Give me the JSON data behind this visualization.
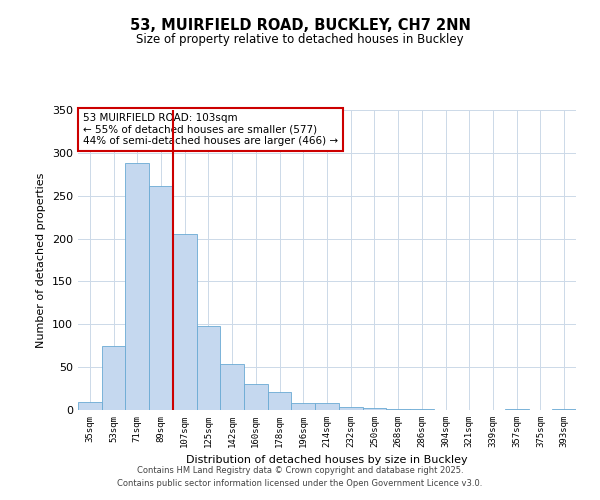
{
  "title": "53, MUIRFIELD ROAD, BUCKLEY, CH7 2NN",
  "subtitle": "Size of property relative to detached houses in Buckley",
  "xlabel": "Distribution of detached houses by size in Buckley",
  "ylabel": "Number of detached properties",
  "bar_labels": [
    "35sqm",
    "53sqm",
    "71sqm",
    "89sqm",
    "107sqm",
    "125sqm",
    "142sqm",
    "160sqm",
    "178sqm",
    "196sqm",
    "214sqm",
    "232sqm",
    "250sqm",
    "268sqm",
    "286sqm",
    "304sqm",
    "321sqm",
    "339sqm",
    "357sqm",
    "375sqm",
    "393sqm"
  ],
  "bar_values": [
    9,
    75,
    288,
    261,
    205,
    98,
    54,
    30,
    21,
    8,
    8,
    4,
    2,
    1,
    1,
    0,
    0,
    0,
    1,
    0,
    1
  ],
  "bar_color": "#c5d8ef",
  "bar_edge_color": "#6aaad4",
  "vline_index": 4,
  "vline_color": "#cc0000",
  "annotation_text": "53 MUIRFIELD ROAD: 103sqm\n← 55% of detached houses are smaller (577)\n44% of semi-detached houses are larger (466) →",
  "annotation_box_color": "#ffffff",
  "annotation_box_edge": "#cc0000",
  "ylim": [
    0,
    350
  ],
  "yticks": [
    0,
    50,
    100,
    150,
    200,
    250,
    300,
    350
  ],
  "bg_color": "#ffffff",
  "grid_color": "#ccd9e8",
  "footer_line1": "Contains HM Land Registry data © Crown copyright and database right 2025.",
  "footer_line2": "Contains public sector information licensed under the Open Government Licence v3.0."
}
